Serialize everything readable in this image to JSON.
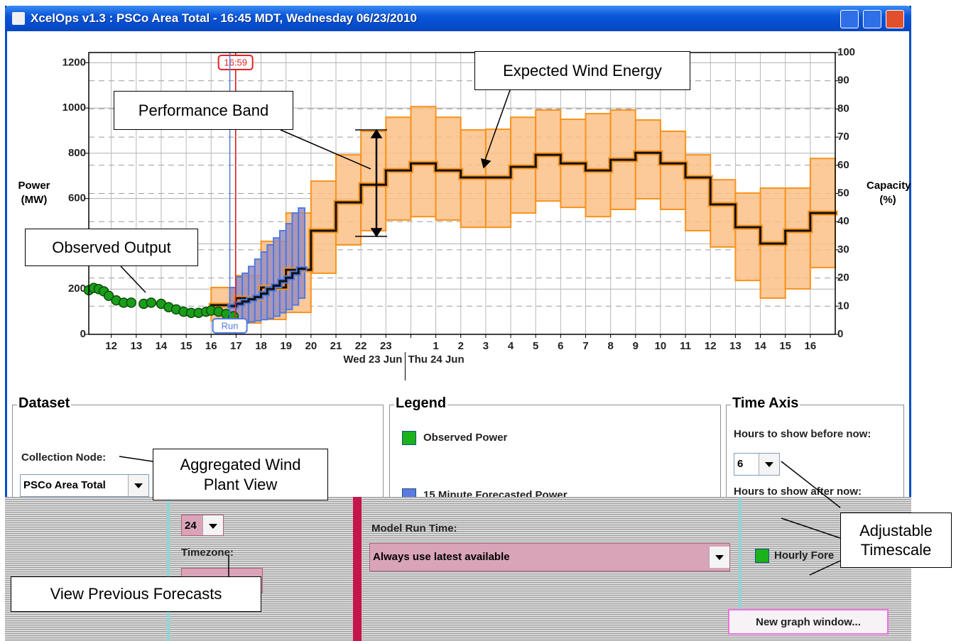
{
  "window": {
    "title": "XcelOps v1.3 : PSCo Area Total - 16:45 MDT, Wednesday 06/23/2010"
  },
  "chart_data": {
    "type": "line",
    "y_label": "Power (MW)",
    "y2_label": "Capacity (%)",
    "xlim": [
      11.1,
      41.0
    ],
    "ylim": [
      0,
      1245
    ],
    "y2lim": [
      0,
      100
    ],
    "yticks": [
      0,
      200,
      400,
      600,
      800,
      1000,
      1200
    ],
    "y2ticks": [
      0,
      10,
      20,
      30,
      40,
      50,
      60,
      70,
      80,
      90,
      100
    ],
    "xticks": [
      12,
      13,
      14,
      15,
      16,
      17,
      18,
      19,
      20,
      21,
      22,
      23,
      {
        "value": 24,
        "label": null
      },
      {
        "value": 25,
        "label": "1"
      },
      {
        "value": 26,
        "label": "2"
      },
      {
        "value": 27,
        "label": "3"
      },
      {
        "value": 28,
        "label": "4"
      },
      {
        "value": 29,
        "label": "5"
      },
      {
        "value": 30,
        "label": "6"
      },
      {
        "value": 31,
        "label": "7"
      },
      {
        "value": 32,
        "label": "8"
      },
      {
        "value": 33,
        "label": "9"
      },
      {
        "value": 34,
        "label": "10"
      },
      {
        "value": 35,
        "label": "11"
      },
      {
        "value": 36,
        "label": "12"
      },
      {
        "value": 37,
        "label": "13"
      },
      {
        "value": 38,
        "label": "14"
      },
      {
        "value": 39,
        "label": "15"
      },
      {
        "value": 40,
        "label": "16"
      }
    ],
    "date_labels": [
      "Wed 23 Jun",
      "Thu 24 Jun"
    ],
    "grid": true,
    "markers": [
      {
        "x": 16.98,
        "label": "16:59",
        "color": "#e82020"
      },
      {
        "x": 16.75,
        "label": "Run",
        "color": "#4f7be0"
      }
    ],
    "series": [
      {
        "name": "Observed Power",
        "kind": "points",
        "color": "#1a9e1a",
        "x": [
          11.1,
          11.3,
          11.5,
          11.7,
          11.9,
          12.2,
          12.5,
          12.8,
          13.3,
          13.6,
          14.0,
          14.3,
          14.6,
          14.9,
          15.2,
          15.5,
          15.8,
          16.0,
          16.3,
          16.6,
          16.9
        ],
        "values": [
          195,
          205,
          200,
          190,
          170,
          150,
          140,
          140,
          135,
          140,
          135,
          120,
          110,
          100,
          95,
          95,
          100,
          105,
          100,
          90,
          80
        ]
      },
      {
        "name": "15 Minute Forecasted Power",
        "kind": "band",
        "color": "#4f7be0",
        "fill": "#9c8db8",
        "x": [
          16.75,
          17.0,
          17.25,
          17.5,
          17.75,
          18.0,
          18.25,
          18.5,
          18.75,
          19.0,
          19.25,
          19.5
        ],
        "upper": [
          207,
          254,
          270,
          300,
          332,
          364,
          395,
          426,
          458,
          489,
          536,
          558
        ],
        "lower": [
          50,
          50,
          50,
          55,
          60,
          65,
          70,
          80,
          95,
          110,
          130,
          160
        ],
        "values": [
          125,
          135,
          145,
          155,
          165,
          180,
          200,
          215,
          235,
          250,
          270,
          290
        ]
      },
      {
        "name": "Hourly Fore",
        "kind": "band",
        "color": "#f7931e",
        "fill": "#fbbf86",
        "x": [
          16,
          17,
          18,
          19,
          20,
          21,
          22,
          23,
          24,
          25,
          26,
          27,
          28,
          29,
          30,
          31,
          32,
          33,
          34,
          35,
          36,
          37,
          38,
          39,
          40
        ],
        "upper": [
          207,
          260,
          411,
          536,
          677,
          793,
          897,
          959,
          1006,
          959,
          903,
          906,
          959,
          991,
          950,
          975,
          991,
          947,
          897,
          793,
          683,
          624,
          646,
          646,
          777
        ],
        "lower": [
          60,
          50,
          66,
          97,
          270,
          395,
          458,
          505,
          520,
          505,
          473,
          473,
          536,
          589,
          561,
          520,
          552,
          599,
          552,
          458,
          386,
          238,
          160,
          201,
          295
        ],
        "values": [
          129,
          160,
          207,
          285,
          458,
          583,
          661,
          724,
          755,
          724,
          693,
          693,
          740,
          793,
          755,
          724,
          771,
          802,
          755,
          693,
          574,
          473,
          401,
          458,
          536
        ]
      }
    ]
  },
  "annotations": [
    "Expected Wind Energy",
    "Performance Band",
    "Observed Output",
    "Aggregated Wind Plant View",
    "Adjustable Timescale",
    "View Previous Forecasts"
  ],
  "panels": {
    "dataset": {
      "title": "Dataset",
      "collection_node_label": "Collection Node:",
      "collection_node": "PSCo Area Total",
      "hours_after": 24,
      "timezone_label": "Timezone:"
    },
    "legend": {
      "title": "Legend",
      "model_run_label": "Model Run Time:",
      "model_run": "Always use latest available"
    },
    "time_axis": {
      "title": "Time Axis",
      "before_label": "Hours to show before now:",
      "before": 6,
      "after_label": "Hours to show after now:"
    },
    "new_window_button": "New graph window..."
  }
}
